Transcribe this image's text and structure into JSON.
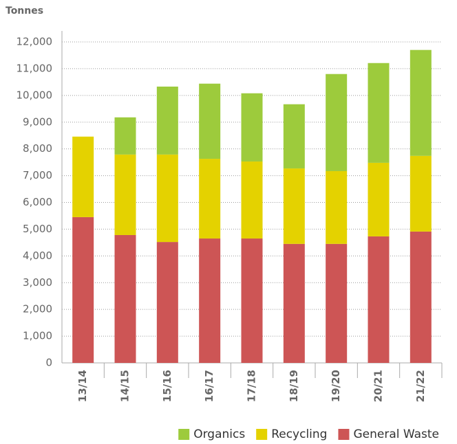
{
  "chart_data": {
    "type": "stacked_bar",
    "y_axis_label": "Tonnes",
    "categories": [
      "13/14",
      "14/15",
      "15/16",
      "16/17",
      "17/18",
      "18/19",
      "19/20",
      "20/21",
      "21/22"
    ],
    "series": [
      {
        "name": "Organics",
        "color": "#9dcb3c",
        "values": [
          0,
          1390,
          2540,
          2810,
          2550,
          2400,
          3630,
          3730,
          3960
        ]
      },
      {
        "name": "Recycling",
        "color": "#e4d200",
        "values": [
          3010,
          3010,
          3270,
          2980,
          2880,
          2820,
          2720,
          2750,
          2830
        ]
      },
      {
        "name": "General Waste",
        "color": "#cd5555",
        "values": [
          5450,
          4780,
          4520,
          4650,
          4650,
          4450,
          4450,
          4730,
          4910
        ]
      }
    ],
    "ylim": [
      0,
      12000
    ],
    "yticks": [
      0,
      {
        "value": 1000,
        "label": "1,000"
      },
      {
        "value": 2000,
        "label": "2,000"
      },
      {
        "value": 3000,
        "label": "3,000"
      },
      {
        "value": 4000,
        "label": "4,000"
      },
      {
        "value": 5000,
        "label": "5,000"
      },
      {
        "value": 6000,
        "label": "6,000"
      },
      {
        "value": 7000,
        "label": "7,000"
      },
      {
        "value": 8000,
        "label": "8,000"
      },
      {
        "value": 9000,
        "label": "9,000"
      },
      {
        "value": 10000,
        "label": "10,000"
      },
      {
        "value": 11000,
        "label": "11,000"
      },
      {
        "value": 12000,
        "label": "12,000"
      }
    ],
    "grid": true,
    "legend": "bottom-right"
  }
}
